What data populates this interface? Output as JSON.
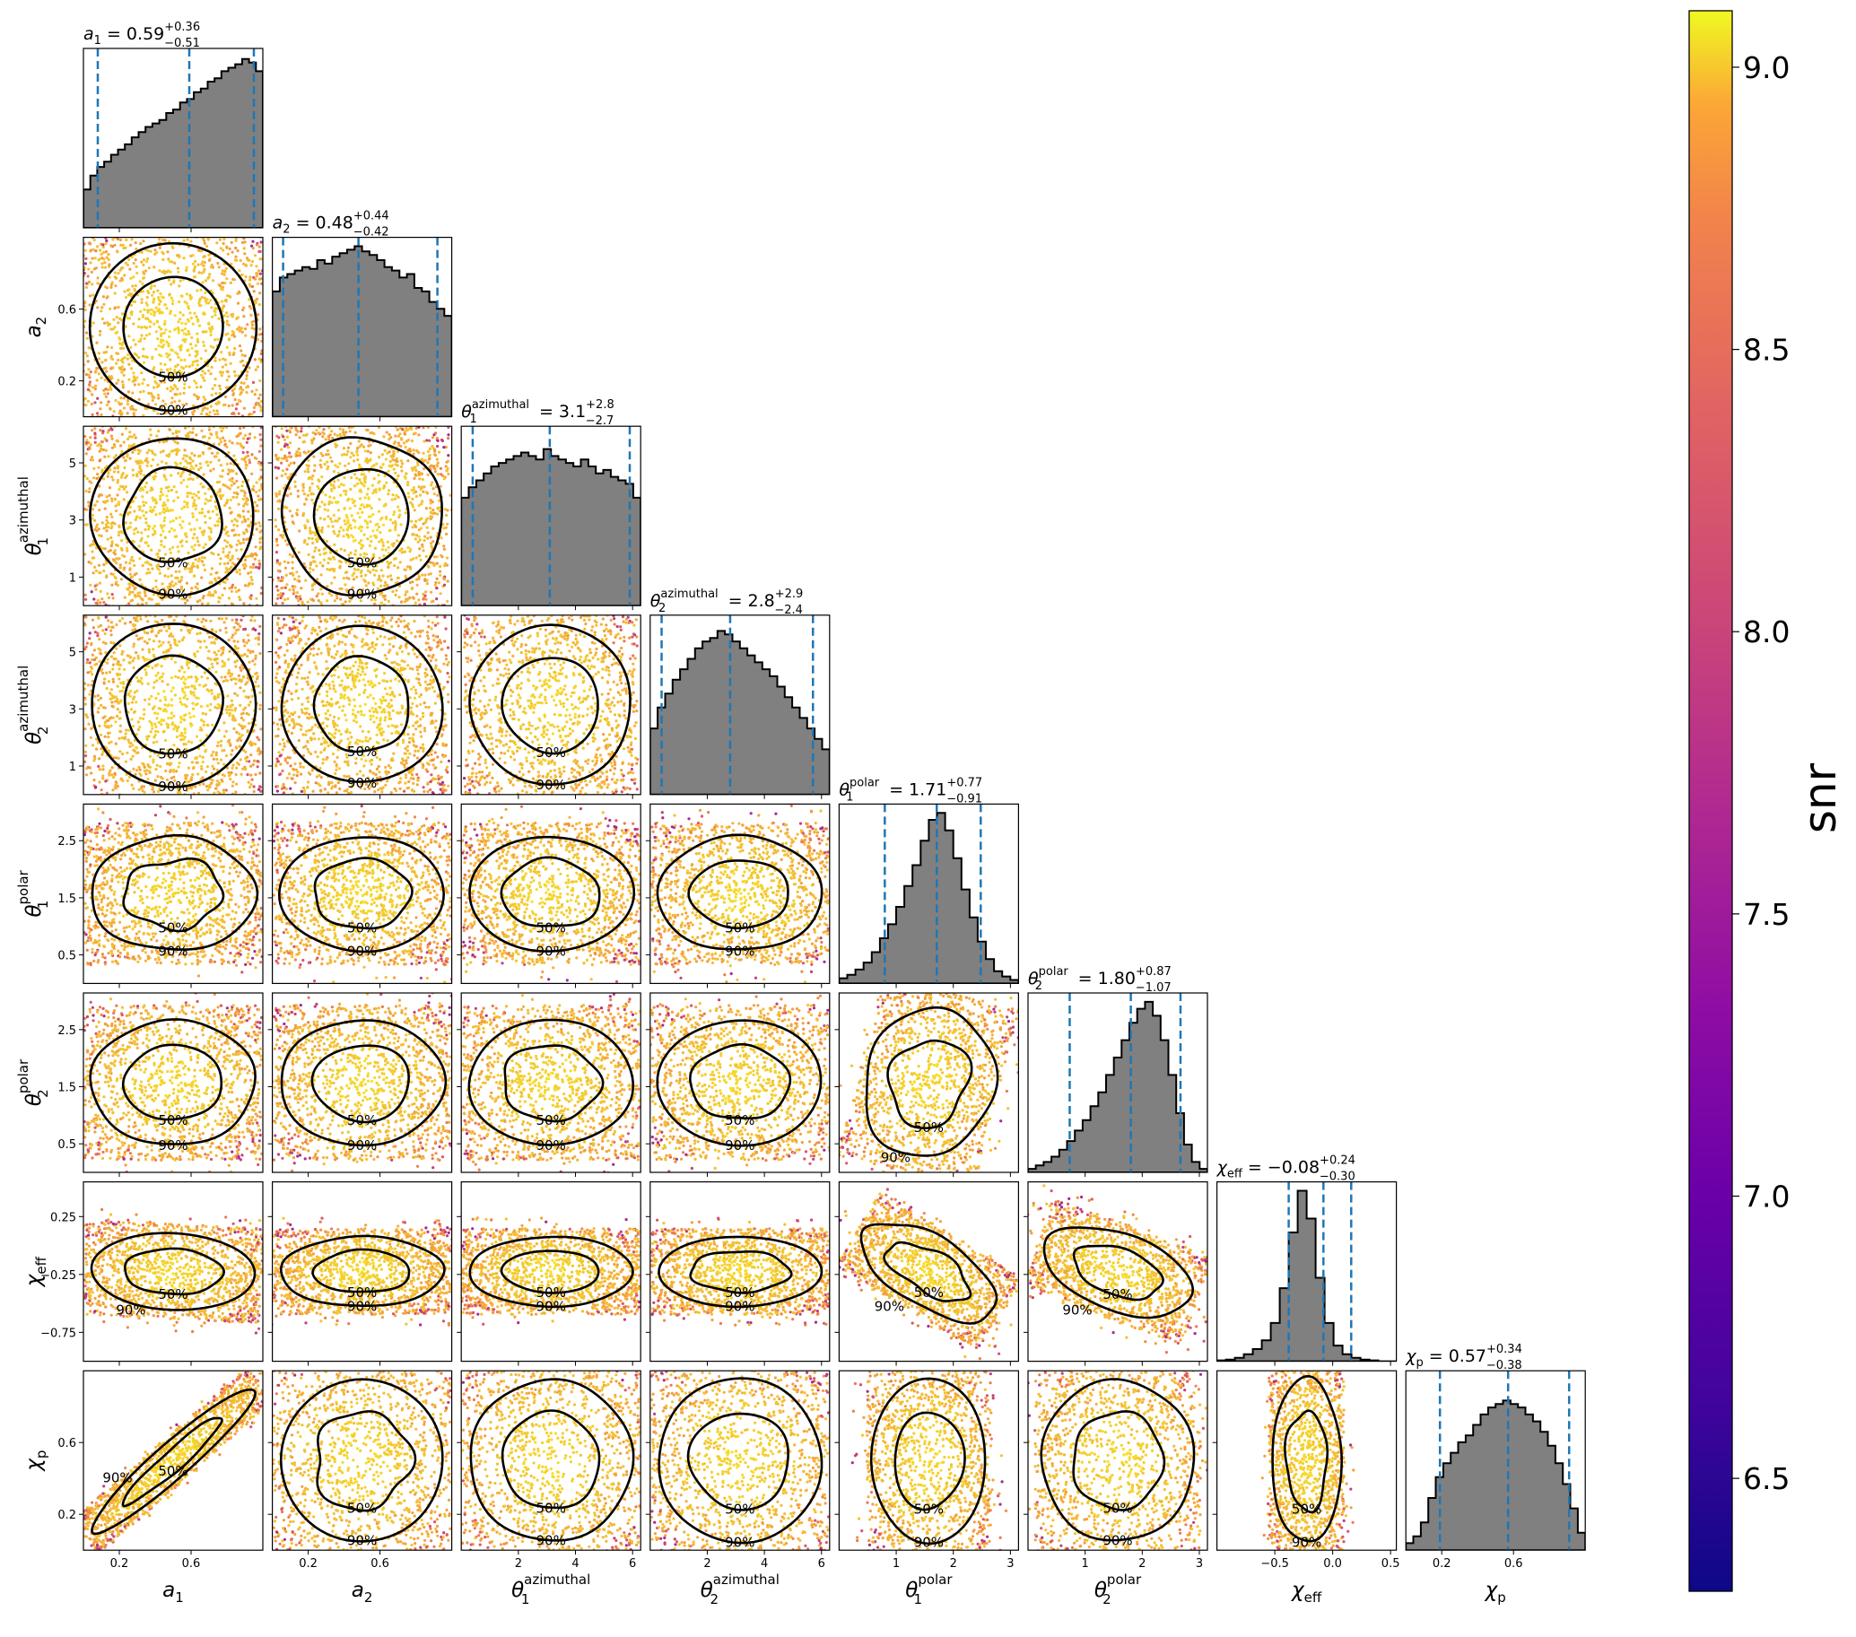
{
  "chart_data": {
    "type": "corner",
    "parameters": [
      {
        "id": "a1",
        "sym": "a",
        "sub": "1",
        "sup": "",
        "range": [
          0.0,
          1.0
        ],
        "ticks": [
          0.2,
          0.6
        ],
        "median": 0.59,
        "plus": "0.36",
        "minus": "0.51",
        "median_text": "0.59",
        "q": [
          0.08,
          0.59,
          0.95
        ]
      },
      {
        "id": "a2",
        "sym": "a",
        "sub": "2",
        "sup": "",
        "range": [
          0.0,
          1.0
        ],
        "ticks": [
          0.2,
          0.6
        ],
        "median": 0.48,
        "plus": "0.44",
        "minus": "0.42",
        "median_text": "0.48",
        "q": [
          0.06,
          0.48,
          0.92
        ]
      },
      {
        "id": "theta1az",
        "sym": "θ",
        "sub": "1",
        "sup": "azimuthal",
        "range": [
          0.0,
          6.283
        ],
        "ticks": [
          1,
          3,
          5
        ],
        "median": 3.1,
        "plus": "2.8",
        "minus": "2.7",
        "median_text": "3.1",
        "q": [
          0.4,
          3.1,
          5.9
        ]
      },
      {
        "id": "theta2az",
        "sym": "θ",
        "sub": "2",
        "sup": "azimuthal",
        "range": [
          0.0,
          6.283
        ],
        "ticks": [
          1,
          3,
          5
        ],
        "median": 2.8,
        "plus": "2.9",
        "minus": "2.4",
        "median_text": "2.8",
        "q": [
          0.4,
          2.8,
          5.7
        ]
      },
      {
        "id": "theta1po",
        "sym": "θ",
        "sub": "1",
        "sup": "polar",
        "range": [
          0.0,
          3.1416
        ],
        "ticks": [
          0.5,
          1.5,
          2.5
        ],
        "median": 1.71,
        "plus": "0.77",
        "minus": "0.91",
        "median_text": "1.71",
        "q": [
          0.8,
          1.71,
          2.48
        ]
      },
      {
        "id": "theta2po",
        "sym": "θ",
        "sub": "2",
        "sup": "polar",
        "range": [
          0.0,
          3.1416
        ],
        "ticks": [
          0.5,
          1.5,
          2.5
        ],
        "median": 1.8,
        "plus": "0.87",
        "minus": "1.07",
        "median_text": "1.80",
        "q": [
          0.73,
          1.8,
          2.67
        ]
      },
      {
        "id": "chieff",
        "sym": "χ",
        "sub": "eff",
        "sup": "",
        "range": [
          -1.0,
          0.55
        ],
        "ticks": [
          -0.75,
          -0.25,
          0.25
        ],
        "median": -0.08,
        "plus": "0.24",
        "minus": "0.30",
        "median_text": "−0.08",
        "q": [
          -0.38,
          -0.08,
          0.16
        ]
      },
      {
        "id": "chip",
        "sym": "χ",
        "sub": "p",
        "sup": "",
        "range": [
          0.0,
          1.0
        ],
        "ticks": [
          0.2,
          0.6
        ],
        "median": 0.57,
        "plus": "0.34",
        "minus": "0.38",
        "median_text": "0.57",
        "q": [
          0.19,
          0.57,
          0.91
        ]
      }
    ],
    "bottom_ticks": [
      [
        0.2,
        0.6
      ],
      [
        0.2,
        0.6
      ],
      [
        2,
        4,
        6
      ],
      [
        2,
        4,
        6
      ],
      [
        1,
        2,
        3
      ],
      [
        1,
        2,
        3
      ],
      [
        -0.5,
        0.0,
        0.5
      ],
      [
        0.2,
        0.6
      ]
    ],
    "bottom_tick_labels": [
      [
        "0.2",
        "0.6"
      ],
      [
        "0.2",
        "0.6"
      ],
      [
        "2",
        "4",
        "6"
      ],
      [
        "2",
        "4",
        "6"
      ],
      [
        "1",
        "2",
        "3"
      ],
      [
        "1",
        "2",
        "3"
      ],
      [
        "−0.5",
        "0.0",
        "0.5"
      ],
      [
        "0.2",
        "0.6"
      ]
    ],
    "left_tick_labels": [
      null,
      [
        "0.2",
        "0.6"
      ],
      [
        "1",
        "3",
        "5"
      ],
      [
        "1",
        "3",
        "5"
      ],
      [
        "0.5",
        "1.5",
        "2.5"
      ],
      [
        "0.5",
        "1.5",
        "2.5"
      ],
      [
        "−0.75",
        "−0.25",
        "0.25"
      ],
      [
        "0.2",
        "0.6"
      ]
    ],
    "histograms": [
      [
        0.22,
        0.3,
        0.35,
        0.38,
        0.42,
        0.45,
        0.48,
        0.52,
        0.55,
        0.58,
        0.6,
        0.62,
        0.66,
        0.68,
        0.72,
        0.74,
        0.78,
        0.8,
        0.84,
        0.86,
        0.9,
        0.92,
        0.94,
        0.97,
        0.95,
        0.9
      ],
      [
        0.72,
        0.8,
        0.82,
        0.84,
        0.86,
        0.85,
        0.9,
        0.88,
        0.92,
        0.94,
        0.96,
        0.98,
        0.95,
        0.93,
        0.9,
        0.86,
        0.84,
        0.8,
        0.82,
        0.74,
        0.72,
        0.66,
        0.62,
        0.58
      ],
      [
        0.62,
        0.68,
        0.72,
        0.76,
        0.8,
        0.82,
        0.84,
        0.86,
        0.88,
        0.86,
        0.84,
        0.9,
        0.86,
        0.84,
        0.82,
        0.8,
        0.84,
        0.8,
        0.76,
        0.78,
        0.74,
        0.72,
        0.7,
        0.62
      ],
      [
        0.38,
        0.5,
        0.58,
        0.66,
        0.72,
        0.78,
        0.84,
        0.88,
        0.9,
        0.94,
        0.92,
        0.88,
        0.84,
        0.8,
        0.76,
        0.72,
        0.68,
        0.62,
        0.56,
        0.5,
        0.44,
        0.38,
        0.32,
        0.26
      ],
      [
        0.03,
        0.05,
        0.08,
        0.12,
        0.18,
        0.26,
        0.34,
        0.44,
        0.56,
        0.68,
        0.82,
        0.94,
        0.98,
        0.88,
        0.72,
        0.54,
        0.38,
        0.24,
        0.14,
        0.07,
        0.04,
        0.02
      ],
      [
        0.02,
        0.04,
        0.06,
        0.09,
        0.13,
        0.18,
        0.24,
        0.3,
        0.38,
        0.46,
        0.56,
        0.66,
        0.76,
        0.86,
        0.94,
        0.98,
        0.9,
        0.76,
        0.56,
        0.34,
        0.16,
        0.06,
        0.02
      ],
      [
        0.005,
        0.01,
        0.02,
        0.04,
        0.07,
        0.12,
        0.22,
        0.42,
        0.74,
        0.98,
        0.82,
        0.48,
        0.22,
        0.09,
        0.04,
        0.02,
        0.01,
        0.005,
        0.0,
        0.0
      ],
      [
        0.04,
        0.08,
        0.16,
        0.3,
        0.42,
        0.5,
        0.56,
        0.62,
        0.66,
        0.72,
        0.78,
        0.82,
        0.84,
        0.86,
        0.84,
        0.82,
        0.78,
        0.74,
        0.68,
        0.6,
        0.5,
        0.38,
        0.24,
        0.1
      ]
    ],
    "contour_levels": [
      "50%",
      "90%"
    ],
    "colorbar": {
      "label": "snr",
      "min": 6.3,
      "max": 9.1,
      "ticks": [
        6.5,
        7.0,
        7.5,
        8.0,
        8.5,
        9.0
      ],
      "tick_labels": [
        "6.5",
        "7.0",
        "7.5",
        "8.0",
        "8.5",
        "9.0"
      ],
      "colormap": "plasma"
    },
    "colors": {
      "histogram_fill": "#808080",
      "median_line": "#1f77b4",
      "contour": "#000000",
      "scatter_core": "#f7d82c",
      "scatter_mid": "#f3a03c",
      "scatter_edge": "#c3407a"
    }
  }
}
